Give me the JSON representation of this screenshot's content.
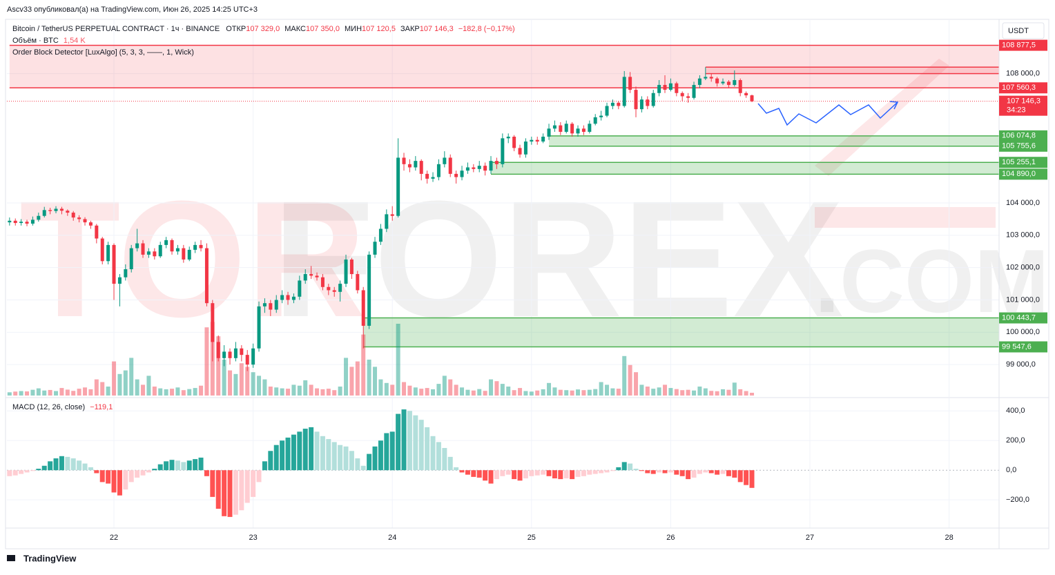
{
  "header": {
    "author_line": "Ascv33 опубликовал(а) на TradingView.com, Июн 26, 2025 14:25 UTC+3",
    "currency": "USDT",
    "symbol": "Bitcoin / TetherUS PERPETUAL CONTRACT · 1ч · BINANCE",
    "open_label": "ОТКР",
    "open": "107 329,0",
    "high_label": "МАКС",
    "high": "107 350,0",
    "low_label": "МИН",
    "low": "107 120,5",
    "close_label": "ЗАКР",
    "close": "107 146,3",
    "change": "−182,8 (−0,17%)",
    "volume_label": "Объём · BTC",
    "volume": "1,54 K",
    "indicator": "Order Block Detector [LuxAlgo] (5, 3, 3, ——, 1, Wick)",
    "macd_label": "MACD (12, 26, close)",
    "macd": "−119,1"
  },
  "watermark": {
    "a": "TOR",
    "b": "FOREX",
    "c": ".COM"
  },
  "footer": {
    "logo": "TradingView"
  },
  "chart_data": {
    "type": "candlestick",
    "colors": {
      "up": "#089981",
      "down": "#f23645",
      "bullish": "#4caf50",
      "bearish": "#f23645"
    },
    "xlim": [
      21.231,
      28.359
    ],
    "xticks": [
      22,
      23,
      24,
      25,
      26,
      27,
      28
    ],
    "ylim": [
      98000,
      109680
    ],
    "yticks": [
      {
        "value": 108000,
        "label": "108 000,0"
      },
      {
        "value": 104000,
        "label": "104 000,0"
      },
      {
        "value": 103000,
        "label": "103 000,0"
      },
      {
        "value": 102000,
        "label": "102 000,0"
      },
      {
        "value": 101000,
        "label": "101 000,0"
      },
      {
        "value": 100000,
        "label": "100 000,0"
      },
      {
        "value": 99000,
        "label": "99 000,0"
      }
    ],
    "grid": true,
    "x": [
      21.25,
      21.2917,
      21.3333,
      21.375,
      21.4167,
      21.4583,
      21.5,
      21.5417,
      21.5833,
      21.625,
      21.6667,
      21.7083,
      21.75,
      21.7917,
      21.8333,
      21.875,
      21.9167,
      21.9583,
      22,
      22.0417,
      22.0833,
      22.125,
      22.1667,
      22.2083,
      22.25,
      22.2917,
      22.3333,
      22.375,
      22.4167,
      22.4583,
      22.5,
      22.5417,
      22.5833,
      22.625,
      22.6667,
      22.7083,
      22.75,
      22.7917,
      22.8333,
      22.875,
      22.9167,
      22.9583,
      23,
      23.0417,
      23.0833,
      23.125,
      23.1667,
      23.2083,
      23.25,
      23.2917,
      23.3333,
      23.375,
      23.4167,
      23.4583,
      23.5,
      23.5417,
      23.5833,
      23.625,
      23.6667,
      23.7083,
      23.75,
      23.7917,
      23.8333,
      23.875,
      23.9167,
      23.9583,
      24,
      24.0417,
      24.0833,
      24.125,
      24.1667,
      24.2083,
      24.25,
      24.2917,
      24.3333,
      24.375,
      24.4167,
      24.4583,
      24.5,
      24.5417,
      24.5833,
      24.625,
      24.6667,
      24.7083,
      24.75,
      24.7917,
      24.8333,
      24.875,
      24.9167,
      24.9583,
      25,
      25.0417,
      25.0833,
      25.125,
      25.1667,
      25.2083,
      25.25,
      25.2917,
      25.3333,
      25.375,
      25.4167,
      25.4583,
      25.5,
      25.5417,
      25.5833,
      25.625,
      25.6667,
      25.7083,
      25.75,
      25.7917,
      25.8333,
      25.875,
      25.9167,
      25.9583,
      26,
      26.0417,
      26.0833,
      26.125,
      26.1667,
      26.2083,
      26.25,
      26.2917,
      26.3333,
      26.375,
      26.4167,
      26.4583,
      26.5,
      26.5417,
      26.5833
    ],
    "candles": [
      [
        103400,
        103550,
        103300,
        103450
      ],
      [
        103450,
        103520,
        103300,
        103380
      ],
      [
        103380,
        103500,
        103300,
        103420
      ],
      [
        103420,
        103480,
        103280,
        103360
      ],
      [
        103360,
        103580,
        103300,
        103480
      ],
      [
        103480,
        103700,
        103420,
        103600
      ],
      [
        103600,
        103880,
        103550,
        103780
      ],
      [
        103780,
        103850,
        103650,
        103750
      ],
      [
        103750,
        103900,
        103680,
        103820
      ],
      [
        103820,
        103880,
        103650,
        103760
      ],
      [
        103760,
        103800,
        103600,
        103700
      ],
      [
        103700,
        103750,
        103450,
        103550
      ],
      [
        103550,
        103620,
        103400,
        103500
      ],
      [
        103500,
        103560,
        103300,
        103400
      ],
      [
        103400,
        103450,
        103200,
        103300
      ],
      [
        103300,
        103350,
        102750,
        102900
      ],
      [
        102900,
        102950,
        102100,
        102200
      ],
      [
        102200,
        102800,
        102100,
        102700
      ],
      [
        102700,
        102750,
        101000,
        101500
      ],
      [
        101500,
        101800,
        100800,
        101700
      ],
      [
        101700,
        102100,
        101600,
        101950
      ],
      [
        101950,
        102700,
        101850,
        102600
      ],
      [
        102600,
        103200,
        102500,
        102750
      ],
      [
        102750,
        102850,
        102300,
        102400
      ],
      [
        102400,
        102600,
        102300,
        102500
      ],
      [
        102500,
        102600,
        102250,
        102350
      ],
      [
        102350,
        102800,
        102300,
        102700
      ],
      [
        102700,
        102950,
        102600,
        102850
      ],
      [
        102850,
        102900,
        102400,
        102500
      ],
      [
        102500,
        102700,
        102400,
        102600
      ],
      [
        102600,
        102700,
        102150,
        102250
      ],
      [
        102250,
        102650,
        102200,
        102550
      ],
      [
        102550,
        102800,
        102450,
        102700
      ],
      [
        102700,
        102850,
        102500,
        102600
      ],
      [
        102600,
        102750,
        100800,
        100900
      ],
      [
        100900,
        101000,
        99100,
        99700
      ],
      [
        99700,
        99900,
        99100,
        99200
      ],
      [
        99200,
        99600,
        98950,
        99400
      ],
      [
        99400,
        99500,
        99000,
        99200
      ],
      [
        99200,
        99700,
        99100,
        99500
      ],
      [
        99500,
        99600,
        99100,
        99300
      ],
      [
        99300,
        99450,
        98800,
        99000
      ],
      [
        99000,
        99650,
        98900,
        99500
      ],
      [
        99500,
        100950,
        99400,
        100800
      ],
      [
        100800,
        101050,
        100600,
        100900
      ],
      [
        100900,
        101000,
        100500,
        100700
      ],
      [
        100700,
        101150,
        100600,
        101000
      ],
      [
        101000,
        101300,
        100900,
        101150
      ],
      [
        101150,
        101250,
        100850,
        101000
      ],
      [
        101000,
        101200,
        100900,
        101100
      ],
      [
        101100,
        101750,
        101000,
        101600
      ],
      [
        101600,
        101950,
        101500,
        101800
      ],
      [
        101800,
        102050,
        101650,
        101750
      ],
      [
        101750,
        101850,
        101600,
        101700
      ],
      [
        101700,
        101800,
        101300,
        101400
      ],
      [
        101400,
        101500,
        101150,
        101300
      ],
      [
        101300,
        101400,
        101100,
        101250
      ],
      [
        101250,
        101600,
        100950,
        101500
      ],
      [
        101500,
        102400,
        101400,
        102250
      ],
      [
        102250,
        102300,
        101650,
        101800
      ],
      [
        101800,
        101900,
        101200,
        101300
      ],
      [
        101300,
        101400,
        99500,
        100200
      ],
      [
        100200,
        102500,
        100100,
        102400
      ],
      [
        102400,
        102950,
        102300,
        102800
      ],
      [
        102800,
        103350,
        102700,
        103200
      ],
      [
        103200,
        103800,
        103100,
        103650
      ],
      [
        103650,
        103900,
        103450,
        103600
      ],
      [
        103600,
        106000,
        103550,
        105400
      ],
      [
        105400,
        105550,
        105000,
        105200
      ],
      [
        105200,
        105350,
        104950,
        105100
      ],
      [
        105100,
        105450,
        105000,
        105300
      ],
      [
        105300,
        105350,
        104700,
        104900
      ],
      [
        104900,
        105000,
        104600,
        104750
      ],
      [
        104750,
        104950,
        104650,
        104800
      ],
      [
        104800,
        105350,
        104700,
        105200
      ],
      [
        105200,
        105600,
        105100,
        105400
      ],
      [
        105400,
        105500,
        104800,
        104900
      ],
      [
        104900,
        105000,
        104600,
        104800
      ],
      [
        104800,
        105150,
        104700,
        105000
      ],
      [
        105000,
        105250,
        104900,
        105100
      ],
      [
        105100,
        105200,
        104950,
        105050
      ],
      [
        105050,
        105300,
        104950,
        105150
      ],
      [
        105150,
        105250,
        104850,
        105000
      ],
      [
        105000,
        105450,
        104900,
        105300
      ],
      [
        105300,
        105400,
        105050,
        105200
      ],
      [
        105200,
        106150,
        105100,
        106000
      ],
      [
        106000,
        106150,
        105850,
        106050
      ],
      [
        106050,
        106100,
        105600,
        105700
      ],
      [
        105700,
        105800,
        105400,
        105500
      ],
      [
        105500,
        106000,
        105400,
        105900
      ],
      [
        105900,
        106050,
        105800,
        105950
      ],
      [
        105950,
        106050,
        105800,
        105900
      ],
      [
        105900,
        106150,
        105850,
        106050
      ],
      [
        106050,
        106450,
        105950,
        106300
      ],
      [
        106300,
        106550,
        106200,
        106400
      ],
      [
        106400,
        106500,
        106100,
        106200
      ],
      [
        106200,
        106550,
        106150,
        106450
      ],
      [
        106450,
        106500,
        106050,
        106150
      ],
      [
        106150,
        106400,
        106050,
        106300
      ],
      [
        106300,
        106400,
        106100,
        106200
      ],
      [
        106200,
        106550,
        106150,
        106450
      ],
      [
        106450,
        106750,
        106400,
        106650
      ],
      [
        106650,
        106850,
        106550,
        106700
      ],
      [
        106700,
        107100,
        106650,
        107000
      ],
      [
        107000,
        107200,
        106900,
        107100
      ],
      [
        107100,
        107150,
        106900,
        107000
      ],
      [
        107000,
        108080,
        106950,
        107900
      ],
      [
        107900,
        108050,
        107400,
        107500
      ],
      [
        107500,
        107600,
        106650,
        106900
      ],
      [
        106900,
        107300,
        106800,
        107200
      ],
      [
        107200,
        107300,
        106900,
        107000
      ],
      [
        107000,
        107500,
        106950,
        107400
      ],
      [
        107400,
        107800,
        107300,
        107650
      ],
      [
        107650,
        107950,
        107400,
        107500
      ],
      [
        107500,
        107850,
        107450,
        107700
      ],
      [
        107700,
        107750,
        107300,
        107400
      ],
      [
        107400,
        107450,
        107150,
        107300
      ],
      [
        107300,
        107400,
        107100,
        107250
      ],
      [
        107250,
        107750,
        107200,
        107650
      ],
      [
        107650,
        107950,
        107550,
        107850
      ],
      [
        107850,
        108200,
        107800,
        107900
      ],
      [
        107900,
        108000,
        107750,
        107850
      ],
      [
        107850,
        107900,
        107600,
        107700
      ],
      [
        107700,
        107850,
        107650,
        107750
      ],
      [
        107750,
        107800,
        107550,
        107650
      ],
      [
        107650,
        108100,
        107600,
        107800
      ],
      [
        107800,
        107850,
        107300,
        107400
      ],
      [
        107400,
        107450,
        107250,
        107329
      ],
      [
        107329,
        107350,
        107120.5,
        107146.3
      ]
    ],
    "volume": [
      1800,
      2200,
      2500,
      2300,
      3200,
      4000,
      2800,
      3100,
      2500,
      4200,
      3300,
      2600,
      3800,
      4500,
      3500,
      9000,
      7500,
      5000,
      19000,
      12000,
      14000,
      21000,
      9000,
      6000,
      11000,
      5000,
      4000,
      3500,
      3800,
      4500,
      3000,
      3600,
      4200,
      5500,
      38000,
      41000,
      33000,
      20000,
      14000,
      12000,
      18000,
      16000,
      13000,
      11000,
      9000,
      5000,
      4500,
      4000,
      3800,
      6000,
      5500,
      8500,
      6000,
      4000,
      3500,
      3800,
      3000,
      5000,
      21000,
      16000,
      19000,
      34000,
      20000,
      16000,
      9000,
      7000,
      6000,
      40000,
      7500,
      5500,
      4500,
      3800,
      4200,
      3500,
      6500,
      11000,
      9000,
      6000,
      4500,
      3200,
      2800,
      3600,
      2600,
      9000,
      8000,
      6500,
      5000,
      3000,
      4200,
      2500,
      2200,
      2800,
      3500,
      7000,
      4500,
      3200,
      3000,
      2800,
      3400,
      3000,
      3200,
      3600,
      7500,
      6000,
      4000,
      3800,
      22000,
      17000,
      13000,
      6000,
      5000,
      3800,
      4500,
      6000,
      4200,
      3600,
      3000,
      3200,
      2800,
      5000,
      4000,
      2600,
      2400,
      3500,
      3200,
      7200,
      3500,
      2500,
      1540
    ],
    "order_blocks": [
      {
        "kind": "bearish",
        "top": 108877.5,
        "bottom": 107560.3,
        "top_label": "108 877,5",
        "bottom_label": "107 560,3",
        "start": 21.25
      },
      {
        "kind": "bearish",
        "top": 108200,
        "bottom": 108000,
        "start": 26.25
      },
      {
        "kind": "bullish",
        "top": 106074.8,
        "bottom": 105755.6,
        "top_label": "106 074,8",
        "bottom_label": "105 755,6",
        "start": 25.125
      },
      {
        "kind": "bullish",
        "top": 105255.1,
        "bottom": 104890,
        "top_label": "105 255,1",
        "bottom_label": "104 890,0",
        "start": 24.7083
      },
      {
        "kind": "bullish",
        "top": 100443.7,
        "bottom": 99547.6,
        "top_label": "100 443,7",
        "bottom_label": "99 547,6",
        "start": 23.7917
      }
    ],
    "last_price": {
      "value": 107146.3,
      "label": "107 146,3",
      "countdown": "34:23"
    },
    "macd": {
      "colors": [
        "#26a69a",
        "#b2dfdb",
        "#ff5252",
        "#ffcdd2"
      ],
      "ylim": [
        -390,
        485
      ],
      "yticks": [
        {
          "value": 400,
          "label": "400,0"
        },
        {
          "value": 200,
          "label": "200,0"
        },
        {
          "value": 0,
          "label": "0,0"
        },
        {
          "value": -200,
          "label": "−200,0"
        }
      ],
      "values": [
        -40,
        -35,
        -25,
        -15,
        -5,
        10,
        30,
        60,
        80,
        95,
        90,
        80,
        65,
        45,
        20,
        -20,
        -80,
        -90,
        -150,
        -170,
        -130,
        -80,
        -50,
        -35,
        -15,
        10,
        40,
        60,
        70,
        65,
        55,
        65,
        75,
        85,
        -40,
        -180,
        -260,
        -310,
        -315,
        -300,
        -270,
        -220,
        -180,
        -80,
        60,
        130,
        170,
        200,
        220,
        240,
        260,
        280,
        290,
        260,
        230,
        210,
        190,
        170,
        160,
        130,
        80,
        30,
        110,
        160,
        200,
        250,
        260,
        380,
        410,
        400,
        370,
        340,
        290,
        230,
        190,
        150,
        90,
        20,
        -15,
        -30,
        -45,
        -50,
        -70,
        -90,
        -60,
        -40,
        -30,
        -60,
        -70,
        -55,
        -40,
        -35,
        -30,
        -40,
        -55,
        -60,
        -55,
        -60,
        -45,
        -40,
        -30,
        -25,
        -20,
        -15,
        -5,
        20,
        55,
        45,
        10,
        -5,
        -20,
        -25,
        -15,
        -20,
        -15,
        -30,
        -40,
        -60,
        -50,
        -25,
        -15,
        -20,
        -30,
        -25,
        -40,
        -50,
        -80,
        -100,
        -119.1
      ]
    }
  }
}
